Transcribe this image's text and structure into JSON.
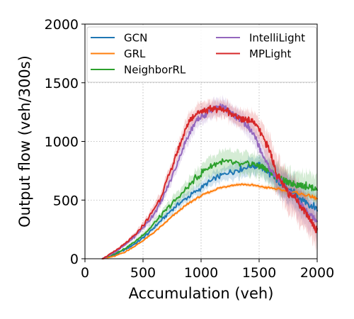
{
  "chart_data": {
    "type": "line",
    "title": "",
    "xlabel": "Accumulation (veh)",
    "ylabel": "Output flow (veh/300s)",
    "xlim": [
      0,
      2000
    ],
    "ylim": [
      0,
      2000
    ],
    "xticks": [
      0,
      500,
      1000,
      1500,
      2000
    ],
    "yticks": [
      0,
      500,
      1000,
      1500,
      2000
    ],
    "grid": true,
    "legend_position": "top",
    "legend_columns": 2,
    "series": [
      {
        "name": "GCN",
        "color": "#1f77b4",
        "x": [
          150,
          250,
          350,
          450,
          550,
          650,
          750,
          850,
          950,
          1050,
          1150,
          1250,
          1350,
          1450,
          1500,
          1550,
          1600,
          1650,
          1700,
          1750,
          1800,
          1850,
          1900,
          1950,
          2000
        ],
        "y": [
          0,
          30,
          80,
          140,
          220,
          320,
          420,
          500,
          570,
          640,
          700,
          740,
          770,
          790,
          800,
          760,
          720,
          670,
          630,
          590,
          560,
          520,
          490,
          450,
          420
        ],
        "spread": [
          0,
          5,
          10,
          15,
          20,
          25,
          35,
          40,
          45,
          50,
          55,
          60,
          65,
          70,
          75,
          80,
          90,
          100,
          110,
          120,
          125,
          130,
          135,
          140,
          145
        ]
      },
      {
        "name": "GRL",
        "color": "#ff7f0e",
        "x": [
          150,
          250,
          350,
          450,
          550,
          650,
          750,
          850,
          950,
          1050,
          1150,
          1250,
          1350,
          1450,
          1550,
          1650,
          1750,
          1850,
          1950,
          2000
        ],
        "y": [
          0,
          20,
          60,
          120,
          190,
          270,
          360,
          440,
          510,
          560,
          600,
          625,
          635,
          625,
          610,
          595,
          575,
          555,
          530,
          510
        ],
        "spread": [
          0,
          3,
          5,
          8,
          10,
          12,
          14,
          15,
          16,
          16,
          16,
          16,
          16,
          16,
          18,
          20,
          22,
          25,
          28,
          30
        ]
      },
      {
        "name": "NeighborRL",
        "color": "#2ca02c",
        "x": [
          150,
          250,
          350,
          450,
          550,
          650,
          750,
          850,
          950,
          1050,
          1150,
          1250,
          1350,
          1450,
          1500,
          1550,
          1600,
          1650,
          1700,
          1750,
          1800,
          1850,
          1900,
          1950,
          2000
        ],
        "y": [
          0,
          40,
          90,
          160,
          250,
          360,
          470,
          570,
          680,
          770,
          820,
          820,
          800,
          810,
          790,
          770,
          740,
          700,
          670,
          650,
          640,
          630,
          620,
          610,
          590
        ],
        "spread": [
          0,
          5,
          10,
          15,
          25,
          35,
          45,
          55,
          70,
          80,
          90,
          90,
          90,
          90,
          90,
          95,
          100,
          105,
          110,
          110,
          110,
          110,
          110,
          110,
          110
        ]
      },
      {
        "name": "IntelliLight",
        "color": "#9467bd",
        "x": [
          150,
          250,
          350,
          450,
          550,
          650,
          750,
          850,
          900,
          950,
          1000,
          1050,
          1100,
          1150,
          1200,
          1250,
          1300,
          1350,
          1400,
          1450,
          1500,
          1550,
          1600,
          1650,
          1700,
          1750,
          1800,
          1850,
          1900,
          1950,
          2000
        ],
        "y": [
          0,
          50,
          120,
          210,
          320,
          470,
          700,
          960,
          1070,
          1160,
          1210,
          1240,
          1270,
          1300,
          1280,
          1250,
          1210,
          1180,
          1130,
          1060,
          960,
          840,
          760,
          700,
          640,
          580,
          520,
          470,
          420,
          370,
          330
        ],
        "spread": [
          0,
          8,
          15,
          25,
          35,
          45,
          55,
          65,
          70,
          70,
          70,
          70,
          70,
          70,
          70,
          70,
          70,
          75,
          80,
          85,
          90,
          95,
          100,
          105,
          110,
          115,
          120,
          125,
          130,
          135,
          140
        ]
      },
      {
        "name": "MPLight",
        "color": "#d62728",
        "x": [
          150,
          250,
          350,
          450,
          550,
          650,
          750,
          800,
          850,
          900,
          950,
          1000,
          1050,
          1100,
          1150,
          1200,
          1250,
          1300,
          1350,
          1400,
          1450,
          1500,
          1550,
          1600,
          1650,
          1700,
          1750,
          1800,
          1850,
          1900,
          1950,
          2000
        ],
        "y": [
          0,
          60,
          130,
          220,
          350,
          520,
          780,
          920,
          1060,
          1180,
          1230,
          1260,
          1270,
          1280,
          1280,
          1270,
          1250,
          1210,
          1190,
          1190,
          1170,
          1100,
          1000,
          900,
          720,
          640,
          560,
          540,
          460,
          400,
          320,
          240
        ],
        "spread": [
          0,
          8,
          15,
          25,
          35,
          45,
          55,
          60,
          65,
          70,
          70,
          70,
          70,
          70,
          70,
          70,
          70,
          70,
          75,
          80,
          85,
          95,
          110,
          130,
          150,
          160,
          160,
          160,
          160,
          150,
          140,
          130
        ]
      }
    ]
  }
}
